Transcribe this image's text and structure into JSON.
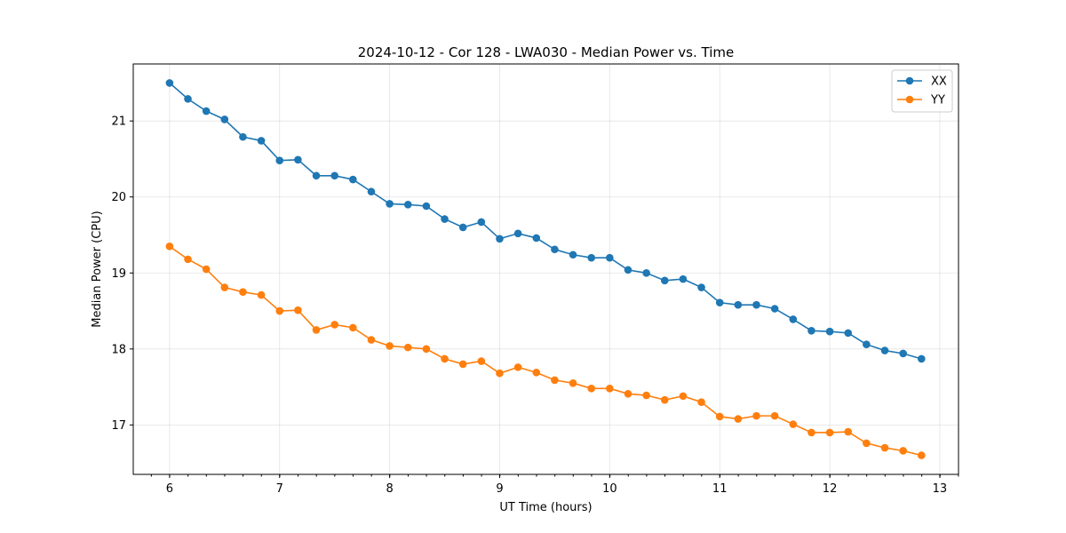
{
  "chart_data": {
    "type": "line",
    "title": "2024-10-12 - Cor 128 - LWA030 - Median Power vs. Time",
    "xlabel": "UT Time (hours)",
    "ylabel": "Median Power (CPU)",
    "xlim": [
      5.67,
      13.17
    ],
    "ylim": [
      16.35,
      21.75
    ],
    "xticks": [
      6,
      7,
      8,
      9,
      10,
      11,
      12,
      13
    ],
    "xtick_labels": [
      "6",
      "7",
      "8",
      "9",
      "10",
      "11",
      "12",
      "13"
    ],
    "xminor_step": 0.1667,
    "yticks": [
      17,
      18,
      19,
      20,
      21
    ],
    "ytick_labels": [
      "17",
      "18",
      "19",
      "20",
      "21"
    ],
    "grid": true,
    "legend_position": "top-right",
    "x": [
      6.0,
      6.1667,
      6.3333,
      6.5,
      6.6667,
      6.8333,
      7.0,
      7.1667,
      7.3333,
      7.5,
      7.6667,
      7.8333,
      8.0,
      8.1667,
      8.3333,
      8.5,
      8.6667,
      8.8333,
      9.0,
      9.1667,
      9.3333,
      9.5,
      9.6667,
      9.8333,
      10.0,
      10.1667,
      10.3333,
      10.5,
      10.6667,
      10.8333,
      11.0,
      11.1667,
      11.3333,
      11.5,
      11.6667,
      11.8333,
      12.0,
      12.1667,
      12.3333,
      12.5,
      12.6667,
      12.8333
    ],
    "series": [
      {
        "name": "XX",
        "color": "#1f77b4",
        "values": [
          21.5,
          21.29,
          21.13,
          21.02,
          20.79,
          20.74,
          20.48,
          20.49,
          20.28,
          20.28,
          20.23,
          20.07,
          19.91,
          19.9,
          19.88,
          19.71,
          19.6,
          19.67,
          19.45,
          19.52,
          19.46,
          19.31,
          19.24,
          19.2,
          19.2,
          19.04,
          19.0,
          18.9,
          18.92,
          18.81,
          18.61,
          18.58,
          18.58,
          18.53,
          18.39,
          18.24,
          18.23,
          18.21,
          18.06,
          17.98,
          17.94,
          17.87
        ]
      },
      {
        "name": "YY",
        "color": "#ff7f0e",
        "values": [
          19.35,
          19.18,
          19.05,
          18.81,
          18.75,
          18.71,
          18.5,
          18.51,
          18.25,
          18.32,
          18.28,
          18.12,
          18.04,
          18.02,
          18.0,
          17.87,
          17.8,
          17.84,
          17.68,
          17.76,
          17.69,
          17.59,
          17.55,
          17.48,
          17.48,
          17.41,
          17.39,
          17.33,
          17.38,
          17.3,
          17.11,
          17.08,
          17.12,
          17.12,
          17.01,
          16.9,
          16.9,
          16.91,
          16.76,
          16.7,
          16.66,
          16.6
        ]
      }
    ]
  }
}
